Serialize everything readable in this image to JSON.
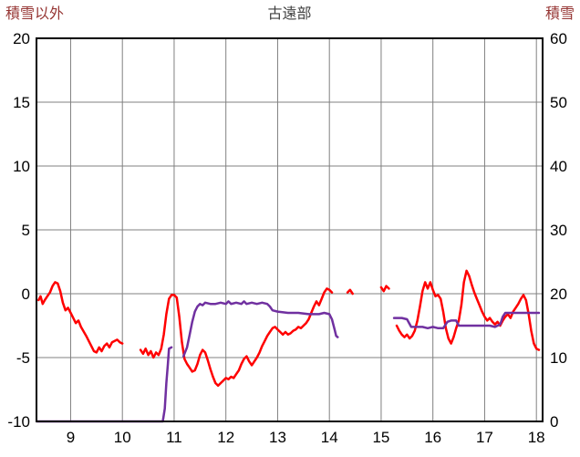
{
  "header": {
    "left_axis_title": "積雪以外",
    "chart_title": "古遠部",
    "right_axis_title": "積雪"
  },
  "chart_data": {
    "type": "line",
    "title": "古遠部",
    "grid": true,
    "legend": "none",
    "colors": {
      "grid": "#808080",
      "border": "#000000"
    },
    "x_axis": {
      "min": 8.34,
      "max": 18.12,
      "ticks": [
        9,
        10,
        11,
        12,
        13,
        14,
        15,
        16,
        17,
        18
      ]
    },
    "left_axis": {
      "label": "積雪以外",
      "min": -10,
      "max": 20,
      "ticks": [
        20,
        15,
        10,
        5,
        0,
        -5,
        -10
      ]
    },
    "right_axis": {
      "label": "積雪",
      "min": 0,
      "max": 60,
      "ticks": [
        60,
        50,
        40,
        30,
        20,
        10,
        0
      ]
    },
    "series": [
      {
        "name": "積雪以外",
        "axis": "left",
        "color": "#ff0000",
        "width": 2.5,
        "segments": [
          [
            [
              8.38,
              -0.5
            ],
            [
              8.42,
              -0.2
            ],
            [
              8.46,
              -0.8
            ],
            [
              8.5,
              -0.5
            ],
            [
              8.55,
              -0.2
            ],
            [
              8.6,
              0.1
            ],
            [
              8.65,
              0.6
            ],
            [
              8.7,
              0.9
            ],
            [
              8.75,
              0.8
            ],
            [
              8.8,
              0.2
            ],
            [
              8.85,
              -0.7
            ],
            [
              8.9,
              -1.3
            ],
            [
              8.95,
              -1.1
            ],
            [
              9.0,
              -1.5
            ],
            [
              9.05,
              -1.9
            ],
            [
              9.1,
              -2.3
            ],
            [
              9.15,
              -2.1
            ],
            [
              9.2,
              -2.6
            ],
            [
              9.3,
              -3.3
            ],
            [
              9.4,
              -4.1
            ],
            [
              9.45,
              -4.5
            ],
            [
              9.5,
              -4.6
            ],
            [
              9.55,
              -4.2
            ],
            [
              9.6,
              -4.5
            ],
            [
              9.65,
              -4.1
            ],
            [
              9.7,
              -3.9
            ],
            [
              9.75,
              -4.2
            ],
            [
              9.8,
              -3.8
            ],
            [
              9.9,
              -3.6
            ],
            [
              9.95,
              -3.8
            ],
            [
              10.0,
              -3.9
            ]
          ],
          [
            [
              10.35,
              -4.4
            ],
            [
              10.4,
              -4.7
            ],
            [
              10.45,
              -4.3
            ],
            [
              10.5,
              -4.8
            ],
            [
              10.55,
              -4.5
            ],
            [
              10.6,
              -5.0
            ],
            [
              10.65,
              -4.6
            ],
            [
              10.7,
              -4.8
            ],
            [
              10.75,
              -4.3
            ],
            [
              10.8,
              -3.2
            ],
            [
              10.85,
              -1.6
            ],
            [
              10.9,
              -0.4
            ],
            [
              10.95,
              -0.1
            ],
            [
              11.0,
              -0.1
            ],
            [
              11.05,
              -0.3
            ],
            [
              11.1,
              -1.8
            ],
            [
              11.15,
              -3.8
            ],
            [
              11.2,
              -5.1
            ],
            [
              11.25,
              -5.5
            ],
            [
              11.3,
              -5.8
            ],
            [
              11.35,
              -6.1
            ],
            [
              11.4,
              -6.0
            ],
            [
              11.45,
              -5.5
            ],
            [
              11.5,
              -4.8
            ],
            [
              11.55,
              -4.4
            ],
            [
              11.6,
              -4.6
            ],
            [
              11.65,
              -5.2
            ],
            [
              11.7,
              -5.9
            ],
            [
              11.75,
              -6.5
            ],
            [
              11.8,
              -7.0
            ],
            [
              11.85,
              -7.2
            ],
            [
              11.9,
              -7.0
            ],
            [
              11.95,
              -6.8
            ],
            [
              12.0,
              -6.6
            ],
            [
              12.05,
              -6.7
            ],
            [
              12.1,
              -6.5
            ],
            [
              12.15,
              -6.6
            ],
            [
              12.2,
              -6.3
            ],
            [
              12.25,
              -6.0
            ],
            [
              12.3,
              -5.5
            ],
            [
              12.35,
              -5.1
            ],
            [
              12.4,
              -4.9
            ],
            [
              12.45,
              -5.3
            ],
            [
              12.5,
              -5.6
            ],
            [
              12.55,
              -5.3
            ],
            [
              12.6,
              -5.0
            ],
            [
              12.65,
              -4.6
            ],
            [
              12.7,
              -4.1
            ],
            [
              12.75,
              -3.7
            ],
            [
              12.8,
              -3.3
            ],
            [
              12.85,
              -3.0
            ],
            [
              12.9,
              -2.7
            ],
            [
              12.95,
              -2.6
            ],
            [
              13.0,
              -2.8
            ],
            [
              13.05,
              -3.0
            ],
            [
              13.1,
              -3.2
            ],
            [
              13.15,
              -3.0
            ],
            [
              13.2,
              -3.2
            ],
            [
              13.25,
              -3.1
            ],
            [
              13.3,
              -2.9
            ],
            [
              13.35,
              -2.8
            ],
            [
              13.4,
              -2.6
            ],
            [
              13.45,
              -2.7
            ],
            [
              13.5,
              -2.5
            ],
            [
              13.55,
              -2.3
            ],
            [
              13.6,
              -2.0
            ],
            [
              13.65,
              -1.5
            ],
            [
              13.7,
              -1.0
            ],
            [
              13.75,
              -0.6
            ],
            [
              13.8,
              -0.9
            ],
            [
              13.85,
              -0.4
            ],
            [
              13.9,
              0.1
            ],
            [
              13.95,
              0.4
            ],
            [
              14.0,
              0.3
            ],
            [
              14.05,
              0.1
            ]
          ],
          [
            [
              14.35,
              0.1
            ],
            [
              14.4,
              0.3
            ],
            [
              14.45,
              0.0
            ]
          ],
          [
            [
              15.0,
              0.5
            ],
            [
              15.05,
              0.2
            ],
            [
              15.1,
              0.6
            ],
            [
              15.15,
              0.4
            ]
          ],
          [
            [
              15.3,
              -2.5
            ],
            [
              15.35,
              -2.9
            ],
            [
              15.4,
              -3.2
            ],
            [
              15.45,
              -3.4
            ],
            [
              15.5,
              -3.2
            ],
            [
              15.55,
              -3.5
            ],
            [
              15.6,
              -3.3
            ],
            [
              15.65,
              -2.9
            ],
            [
              15.7,
              -2.1
            ],
            [
              15.75,
              -1.0
            ],
            [
              15.8,
              0.2
            ],
            [
              15.85,
              0.9
            ],
            [
              15.9,
              0.4
            ],
            [
              15.95,
              0.9
            ],
            [
              16.0,
              0.3
            ],
            [
              16.05,
              -0.2
            ],
            [
              16.1,
              -0.1
            ],
            [
              16.15,
              -0.4
            ],
            [
              16.2,
              -1.4
            ],
            [
              16.25,
              -2.7
            ],
            [
              16.3,
              -3.5
            ],
            [
              16.35,
              -3.9
            ],
            [
              16.4,
              -3.4
            ],
            [
              16.45,
              -2.7
            ],
            [
              16.5,
              -2.1
            ],
            [
              16.55,
              -0.9
            ],
            [
              16.6,
              0.9
            ],
            [
              16.65,
              1.8
            ],
            [
              16.7,
              1.4
            ],
            [
              16.75,
              0.7
            ],
            [
              16.8,
              0.1
            ],
            [
              16.85,
              -0.4
            ],
            [
              16.9,
              -0.9
            ],
            [
              16.95,
              -1.4
            ],
            [
              17.0,
              -1.8
            ],
            [
              17.05,
              -2.1
            ],
            [
              17.1,
              -1.9
            ],
            [
              17.15,
              -2.2
            ],
            [
              17.2,
              -2.4
            ],
            [
              17.25,
              -2.2
            ],
            [
              17.3,
              -2.5
            ],
            [
              17.35,
              -2.1
            ],
            [
              17.4,
              -1.8
            ],
            [
              17.45,
              -1.6
            ],
            [
              17.5,
              -1.9
            ],
            [
              17.55,
              -1.4
            ],
            [
              17.6,
              -1.1
            ],
            [
              17.65,
              -0.8
            ],
            [
              17.7,
              -0.4
            ],
            [
              17.75,
              -0.1
            ],
            [
              17.8,
              -0.5
            ],
            [
              17.85,
              -1.6
            ],
            [
              17.9,
              -2.9
            ],
            [
              17.95,
              -3.9
            ],
            [
              18.0,
              -4.3
            ],
            [
              18.05,
              -4.4
            ]
          ]
        ]
      },
      {
        "name": "積雪",
        "axis": "right",
        "color": "#7030a0",
        "width": 2.5,
        "segments": [
          [
            [
              8.35,
              0
            ],
            [
              10.78,
              0
            ],
            [
              10.82,
              2
            ],
            [
              10.85,
              6
            ],
            [
              10.88,
              9
            ],
            [
              10.9,
              11.4
            ],
            [
              10.95,
              11.6
            ]
          ],
          [
            [
              11.18,
              10.2
            ],
            [
              11.25,
              11.6
            ],
            [
              11.3,
              13.6
            ],
            [
              11.35,
              15.6
            ],
            [
              11.4,
              17.2
            ],
            [
              11.45,
              18.0
            ],
            [
              11.5,
              18.4
            ],
            [
              11.55,
              18.2
            ],
            [
              11.6,
              18.6
            ],
            [
              11.7,
              18.4
            ],
            [
              11.8,
              18.4
            ],
            [
              11.9,
              18.6
            ],
            [
              12.0,
              18.4
            ],
            [
              12.05,
              18.8
            ],
            [
              12.1,
              18.4
            ],
            [
              12.2,
              18.6
            ],
            [
              12.3,
              18.4
            ],
            [
              12.35,
              18.8
            ],
            [
              12.4,
              18.4
            ],
            [
              12.5,
              18.6
            ],
            [
              12.6,
              18.4
            ],
            [
              12.7,
              18.6
            ],
            [
              12.8,
              18.4
            ],
            [
              12.85,
              18.0
            ],
            [
              12.9,
              17.4
            ],
            [
              13.0,
              17.2
            ],
            [
              13.2,
              17.0
            ],
            [
              13.4,
              17.0
            ],
            [
              13.6,
              16.8
            ],
            [
              13.8,
              16.8
            ],
            [
              13.9,
              17.0
            ],
            [
              14.0,
              16.8
            ],
            [
              14.05,
              16.0
            ],
            [
              14.1,
              14.4
            ],
            [
              14.13,
              13.4
            ],
            [
              14.16,
              13.2
            ]
          ],
          [
            [
              15.25,
              16.2
            ],
            [
              15.4,
              16.2
            ],
            [
              15.5,
              16.0
            ],
            [
              15.58,
              14.8
            ],
            [
              15.7,
              14.8
            ],
            [
              15.8,
              14.8
            ],
            [
              15.9,
              14.6
            ],
            [
              16.0,
              14.8
            ],
            [
              16.1,
              14.6
            ],
            [
              16.2,
              14.6
            ],
            [
              16.28,
              15.6
            ],
            [
              16.35,
              15.8
            ],
            [
              16.45,
              15.8
            ],
            [
              16.5,
              15.0
            ],
            [
              16.6,
              15.0
            ],
            [
              16.8,
              15.0
            ],
            [
              17.0,
              15.0
            ],
            [
              17.1,
              15.0
            ],
            [
              17.2,
              14.8
            ],
            [
              17.3,
              15.2
            ],
            [
              17.35,
              16.4
            ],
            [
              17.4,
              17.0
            ],
            [
              17.5,
              17.0
            ],
            [
              17.7,
              17.0
            ],
            [
              17.9,
              17.0
            ],
            [
              18.05,
              17.0
            ]
          ]
        ]
      }
    ]
  }
}
